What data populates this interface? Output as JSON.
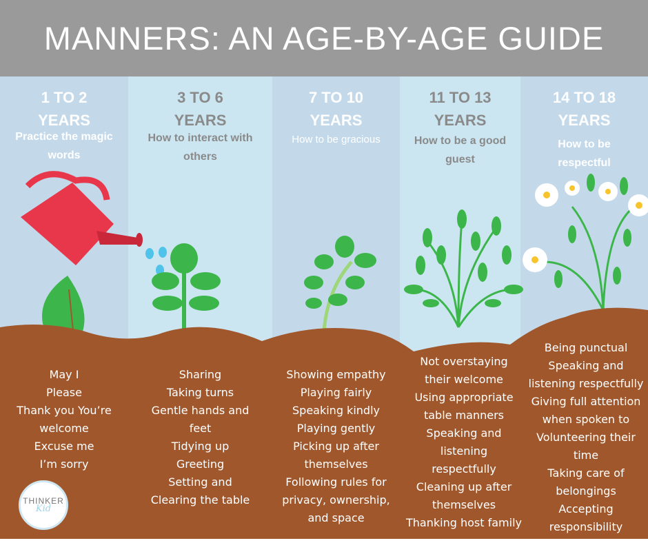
{
  "title": "MANNERS: AN AGE-BY-AGE GUIDE",
  "colors": {
    "header": "#9a9a9a",
    "soil": "#a0572b",
    "leaf": "#3cb54a",
    "can": "#e8374a",
    "water": "#4fc3ea"
  },
  "columns": [
    {
      "age": "1 TO 2",
      "years": "YEARS",
      "subtitle": "Practice the magic words",
      "items": [
        "May I",
        "Please",
        "Thank you You’re",
        "welcome",
        "Excuse me",
        "I’m sorry"
      ]
    },
    {
      "age": "3 TO 6",
      "years": "YEARS",
      "subtitle": "How to interact with others",
      "items": [
        "Sharing",
        "Taking turns",
        "Gentle hands and",
        "feet",
        "Tidying up",
        "Greeting",
        "Setting and",
        "Clearing the table"
      ]
    },
    {
      "age": "7 TO 10",
      "years": "YEARS",
      "subtitle": "How to be gracious",
      "items": [
        "Showing empathy",
        "Playing fairly",
        "Speaking kindly",
        "Playing gently",
        "Picking up after",
        "themselves",
        "Following rules for",
        "privacy, ownership,",
        "and space"
      ]
    },
    {
      "age": "11 TO 13",
      "years": "YEARS",
      "subtitle": "How to be a good guest",
      "items": [
        "Not overstaying",
        "their welcome",
        "Using appropriate",
        "table manners",
        "Speaking and",
        "listening",
        "respectfully",
        "Cleaning up after",
        "themselves",
        "Thanking host family"
      ]
    },
    {
      "age": "14 TO 18",
      "years": "YEARS",
      "subtitle": "How to be respectful",
      "items": [
        "Being punctual",
        "Speaking and",
        "listening respectfully",
        "Giving full attention",
        "when spoken to",
        "Volunteering their",
        "time",
        "Taking care of",
        "belongings",
        "Accepting",
        "responsibility"
      ]
    }
  ],
  "logo": {
    "line1": "THINKER",
    "line2": "Kid"
  }
}
